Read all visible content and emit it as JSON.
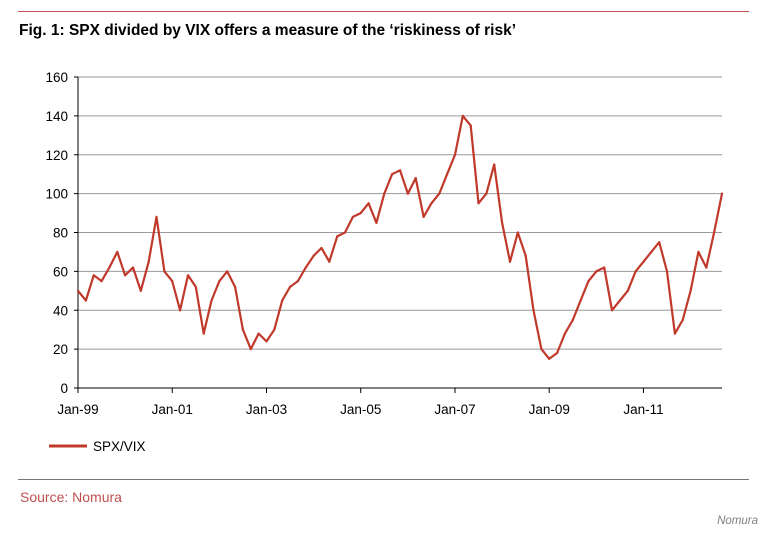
{
  "figure": {
    "title": "Fig. 1: SPX divided by VIX offers a measure of the ‘riskiness of risk’",
    "source": "Source: Nomura",
    "credit": "Nomura"
  },
  "chart_data": {
    "type": "line",
    "title": "Fig. 1: SPX divided by VIX offers a measure of the ‘riskiness of risk’",
    "xlabel": "",
    "ylabel": "",
    "ylim": [
      0,
      160
    ],
    "yticks": [
      0,
      20,
      40,
      60,
      80,
      100,
      120,
      140,
      160
    ],
    "xlim": [
      "Jan-99",
      "Sep-12"
    ],
    "xtick_labels": [
      "Jan-99",
      "Jan-01",
      "Jan-03",
      "Jan-05",
      "Jan-07",
      "Jan-09",
      "Jan-11"
    ],
    "grid": "horizontal",
    "legend": "bottom-left",
    "series_color": "#c0392b",
    "series": [
      {
        "name": "SPX/VIX",
        "x": [
          "Jan-99",
          "Mar-99",
          "May-99",
          "Jul-99",
          "Sep-99",
          "Nov-99",
          "Jan-00",
          "Mar-00",
          "May-00",
          "Jul-00",
          "Sep-00",
          "Nov-00",
          "Jan-01",
          "Mar-01",
          "May-01",
          "Jul-01",
          "Sep-01",
          "Nov-01",
          "Jan-02",
          "Mar-02",
          "May-02",
          "Jul-02",
          "Sep-02",
          "Nov-02",
          "Jan-03",
          "Mar-03",
          "May-03",
          "Jul-03",
          "Sep-03",
          "Nov-03",
          "Jan-04",
          "Mar-04",
          "May-04",
          "Jul-04",
          "Sep-04",
          "Nov-04",
          "Jan-05",
          "Mar-05",
          "May-05",
          "Jul-05",
          "Sep-05",
          "Nov-05",
          "Jan-06",
          "Mar-06",
          "May-06",
          "Jul-06",
          "Sep-06",
          "Nov-06",
          "Jan-07",
          "Mar-07",
          "May-07",
          "Jul-07",
          "Sep-07",
          "Nov-07",
          "Jan-08",
          "Mar-08",
          "May-08",
          "Jul-08",
          "Sep-08",
          "Nov-08",
          "Jan-09",
          "Mar-09",
          "May-09",
          "Jul-09",
          "Sep-09",
          "Nov-09",
          "Jan-10",
          "Mar-10",
          "May-10",
          "Jul-10",
          "Sep-10",
          "Nov-10",
          "Jan-11",
          "Mar-11",
          "May-11",
          "Jul-11",
          "Sep-11",
          "Nov-11",
          "Jan-12",
          "Mar-12",
          "May-12",
          "Jul-12",
          "Sep-12"
        ],
        "values": [
          50,
          45,
          58,
          55,
          62,
          70,
          58,
          62,
          50,
          65,
          88,
          60,
          55,
          40,
          58,
          52,
          28,
          45,
          55,
          60,
          52,
          30,
          20,
          28,
          24,
          30,
          45,
          52,
          55,
          62,
          68,
          72,
          65,
          78,
          80,
          88,
          90,
          95,
          85,
          100,
          110,
          112,
          100,
          108,
          88,
          95,
          100,
          110,
          120,
          140,
          135,
          95,
          100,
          115,
          85,
          65,
          80,
          68,
          40,
          20,
          15,
          18,
          28,
          35,
          45,
          55,
          60,
          62,
          40,
          45,
          50,
          60,
          65,
          70,
          75,
          60,
          28,
          35,
          50,
          70,
          62,
          80,
          100
        ]
      }
    ]
  }
}
